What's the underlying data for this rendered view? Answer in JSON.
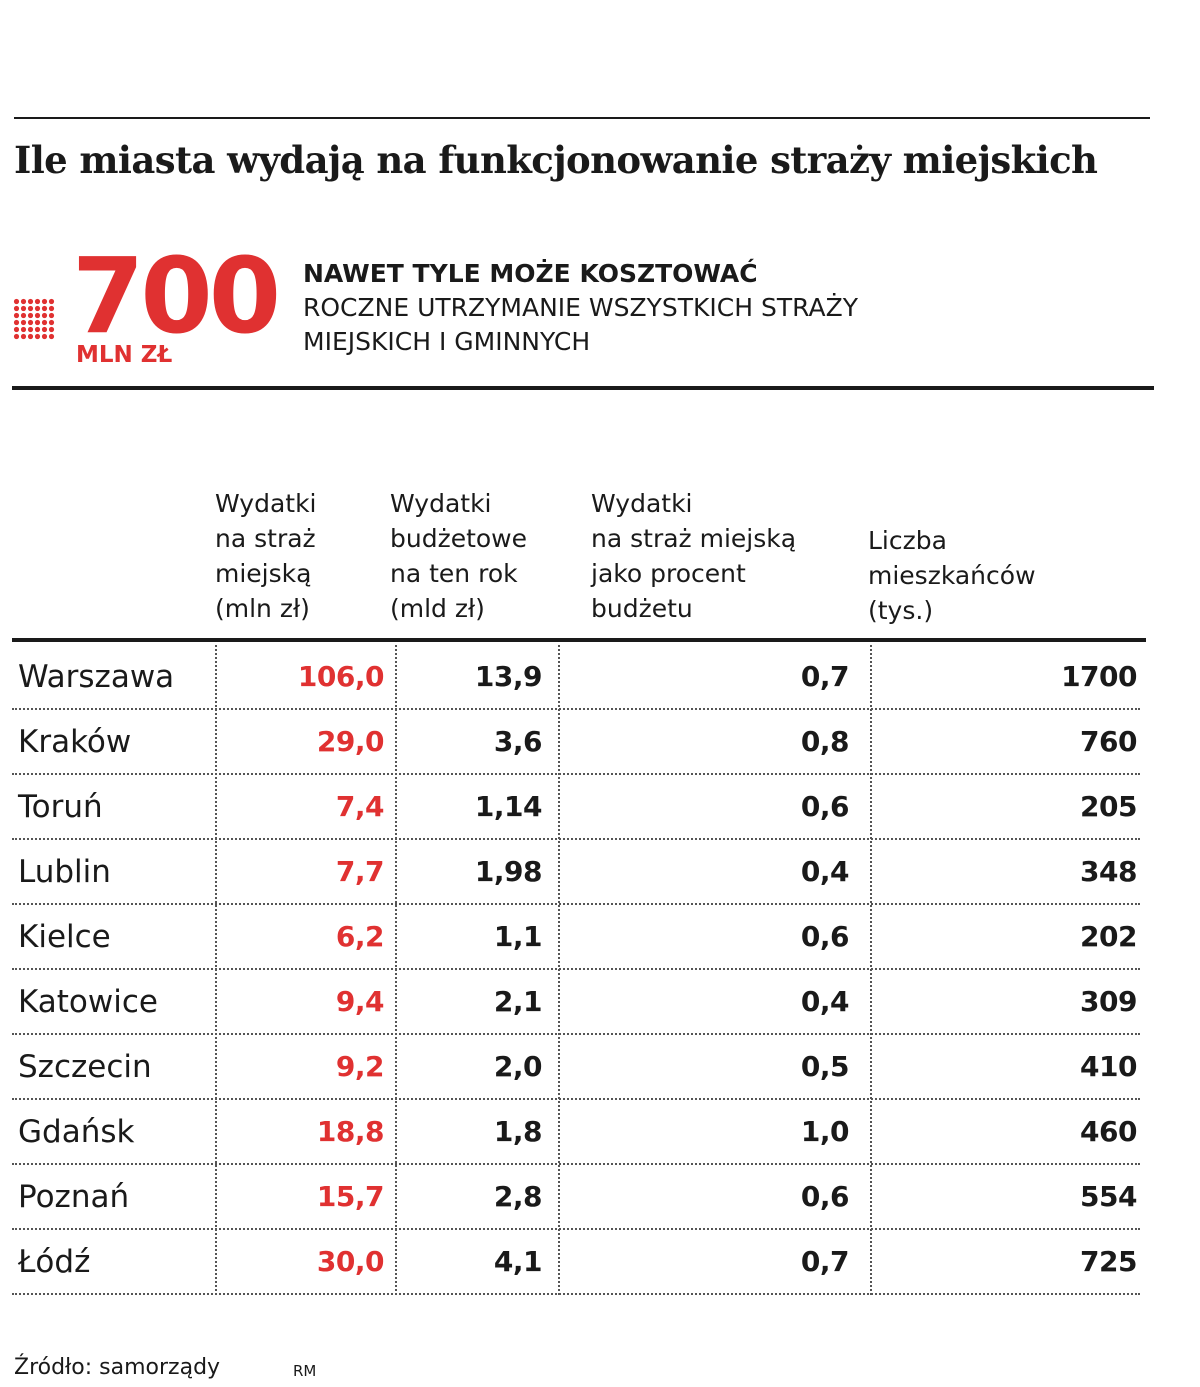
{
  "title": "Ile miasta wydają na funkcjonowanie straży miejskich",
  "highlight": {
    "number": "700",
    "unit": "MLN ZŁ",
    "lead": "NAWET TYLE MOŻE KOSZTOWAĆ",
    "text": "ROCZNE UTRZYMANIE WSZYSTKICH STRAŻY\nMIEJSKICH I GMINNYCH",
    "icon": "dot-grid-icon",
    "accent_color": "#e03131"
  },
  "chart_data": {
    "type": "table",
    "columns": [
      "Wydatki\nna straż\nmiejską\n(mln zł)",
      "Wydatki\nbudżetowe\nna ten rok\n(mld zł)",
      "Wydatki\nna straż miejską\njako procent\nbudżetu",
      "Liczba\nmieszkańców\n(tys.)"
    ],
    "rows": [
      {
        "city": "Warszawa",
        "values": [
          "106,0",
          "13,9",
          "0,7",
          "1700"
        ]
      },
      {
        "city": "Kraków",
        "values": [
          "29,0",
          "3,6",
          "0,8",
          "760"
        ]
      },
      {
        "city": "Toruń",
        "values": [
          "7,4",
          "1,14",
          "0,6",
          "205"
        ]
      },
      {
        "city": "Lublin",
        "values": [
          "7,7",
          "1,98",
          "0,4",
          "348"
        ]
      },
      {
        "city": "Kielce",
        "values": [
          "6,2",
          "1,1",
          "0,6",
          "202"
        ]
      },
      {
        "city": "Katowice",
        "values": [
          "9,4",
          "2,1",
          "0,4",
          "309"
        ]
      },
      {
        "city": "Szczecin",
        "values": [
          "9,2",
          "2,0",
          "0,5",
          "410"
        ]
      },
      {
        "city": "Gdańsk",
        "values": [
          "18,8",
          "1,8",
          "1,0",
          "460"
        ]
      },
      {
        "city": "Poznań",
        "values": [
          "15,7",
          "2,8",
          "0,6",
          "554"
        ]
      },
      {
        "city": "Łódź",
        "values": [
          "30,0",
          "4,1",
          "0,7",
          "725"
        ]
      }
    ],
    "highlight_column": 0,
    "highlight_color": "#e03131"
  },
  "footer": {
    "source": "Źródło: samorządy",
    "author": "RM"
  }
}
